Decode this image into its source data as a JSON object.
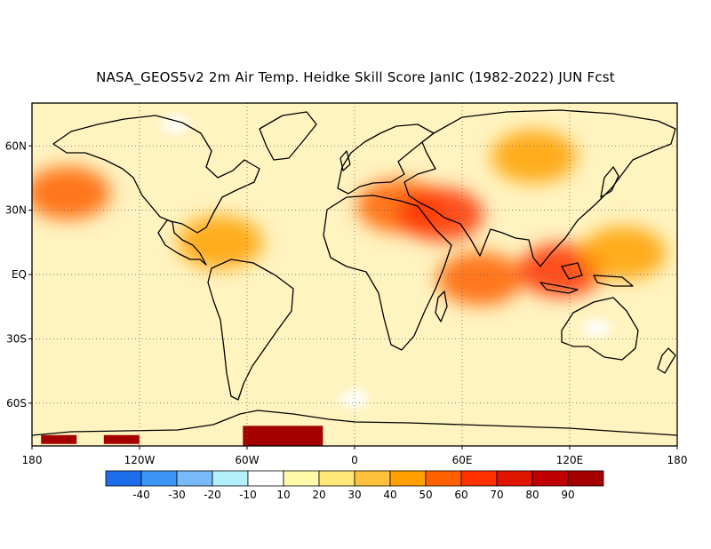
{
  "title": "NASA_GEOS5v2 2m Air Temp. Heidke Skill Score JanIC (1982-2022) JUN Fcst",
  "map": {
    "lon_range": [
      -180,
      180
    ],
    "lat_range": [
      -80,
      80
    ],
    "lat_ticks": [
      {
        "value": 60,
        "label": "60N"
      },
      {
        "value": 30,
        "label": "30N"
      },
      {
        "value": 0,
        "label": "EQ"
      },
      {
        "value": -30,
        "label": "30S"
      },
      {
        "value": -60,
        "label": "60S"
      }
    ],
    "lon_ticks": [
      {
        "value": -180,
        "label": "180"
      },
      {
        "value": -120,
        "label": "120W"
      },
      {
        "value": -60,
        "label": "60W"
      },
      {
        "value": 0,
        "label": "0"
      },
      {
        "value": 60,
        "label": "60E"
      },
      {
        "value": 120,
        "label": "120E"
      },
      {
        "value": 180,
        "label": "180"
      }
    ],
    "gridlines": "dotted",
    "dominant_skill_band": "10-30",
    "hotspots": [
      {
        "name": "north-pacific",
        "lon": -160,
        "lat": 38,
        "level": 50
      },
      {
        "name": "north-africa-med",
        "lon": 25,
        "lat": 32,
        "level": 50
      },
      {
        "name": "middle-east",
        "lon": 48,
        "lat": 28,
        "level": 60
      },
      {
        "name": "indian-ocean",
        "lon": 70,
        "lat": -2,
        "level": 50
      },
      {
        "name": "maritime-continent",
        "lon": 115,
        "lat": 2,
        "level": 60
      },
      {
        "name": "tropical-pacific-west",
        "lon": 150,
        "lat": 10,
        "level": 40
      },
      {
        "name": "caribbean",
        "lon": -75,
        "lat": 15,
        "level": 40
      },
      {
        "name": "siberia",
        "lon": 100,
        "lat": 55,
        "level": 40
      },
      {
        "name": "antarctic-weddell",
        "lon": -40,
        "lat": -76,
        "level": 90
      },
      {
        "name": "antarctic-ross",
        "lon": -165,
        "lat": -77,
        "level": 90
      },
      {
        "name": "antarctic-amundsen",
        "lon": -130,
        "lat": -77,
        "level": 90
      }
    ],
    "negative_spots": [
      {
        "name": "australia",
        "lon": 135,
        "lat": -25,
        "level": -10
      },
      {
        "name": "southern-ocean",
        "lon": 0,
        "lat": -58,
        "level": -10
      },
      {
        "name": "arctic-canada",
        "lon": -100,
        "lat": 70,
        "level": -10
      }
    ]
  },
  "colorbar": {
    "levels": [
      "-40",
      "-30",
      "-20",
      "-10",
      "10",
      "20",
      "30",
      "40",
      "50",
      "60",
      "70",
      "80",
      "90"
    ],
    "colors": [
      "#1e6eeb",
      "#3c96f5",
      "#78b9fa",
      "#b4f0fa",
      "#ffffff",
      "#fffaaa",
      "#ffe878",
      "#ffc03c",
      "#ffa000",
      "#ff6000",
      "#ff3200",
      "#e11400",
      "#c00000",
      "#a50000"
    ]
  }
}
